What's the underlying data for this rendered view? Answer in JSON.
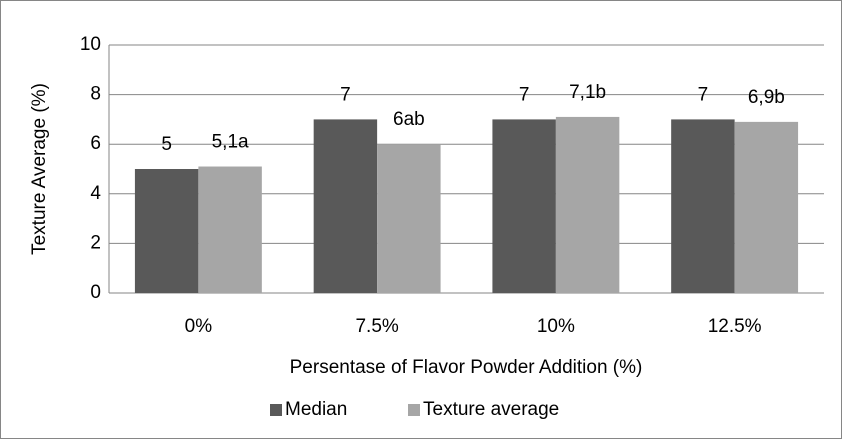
{
  "chart_data": {
    "type": "bar",
    "categories": [
      "0%",
      "7.5%",
      "10%",
      "12.5%"
    ],
    "series": [
      {
        "name": "Median",
        "color": "#595959",
        "values": [
          5,
          7,
          7,
          7
        ],
        "value_labels": [
          "5",
          "7",
          "7",
          "7"
        ]
      },
      {
        "name": "Texture average",
        "color": "#a6a6a6",
        "values": [
          5.1,
          6,
          7.1,
          6.9
        ],
        "value_labels": [
          "5,1a",
          "6ab",
          "7,1b",
          "6,9b"
        ]
      }
    ],
    "ylim": [
      0,
      10
    ],
    "yticks": [
      0,
      2,
      4,
      6,
      8,
      10
    ],
    "grid": true,
    "xlabel": "Persentase of Flavor Powder Addition (%)",
    "ylabel": "Texture Average (%)",
    "legend": "bottom"
  }
}
